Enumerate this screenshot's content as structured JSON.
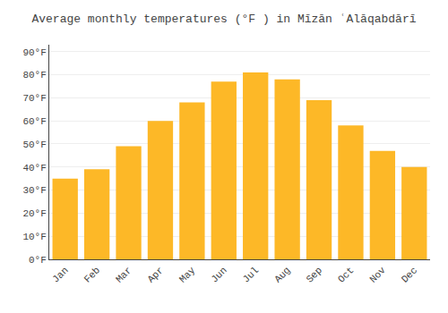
{
  "chart_data": {
    "type": "bar",
    "title": "Average monthly temperatures (°F ) in Mīzān ʿAlāqabdārī",
    "categories": [
      "Jan",
      "Feb",
      "Mar",
      "Apr",
      "May",
      "Jun",
      "Jul",
      "Aug",
      "Sep",
      "Oct",
      "Nov",
      "Dec"
    ],
    "values": [
      35,
      39,
      49,
      60,
      68,
      77,
      81,
      78,
      69,
      58,
      47,
      40
    ],
    "color": "#FDB827",
    "ylim": [
      0,
      93
    ],
    "yticks": [
      {
        "value": 0,
        "label": "0°F"
      },
      {
        "value": 10,
        "label": "10°F"
      },
      {
        "value": 20,
        "label": "20°F"
      },
      {
        "value": 30,
        "label": "30°F"
      },
      {
        "value": 40,
        "label": "40°F"
      },
      {
        "value": 50,
        "label": "50°F"
      },
      {
        "value": 60,
        "label": "60°F"
      },
      {
        "value": 70,
        "label": "70°F"
      },
      {
        "value": 80,
        "label": "80°F"
      },
      {
        "value": 90,
        "label": "90°F"
      }
    ],
    "grid": true
  }
}
